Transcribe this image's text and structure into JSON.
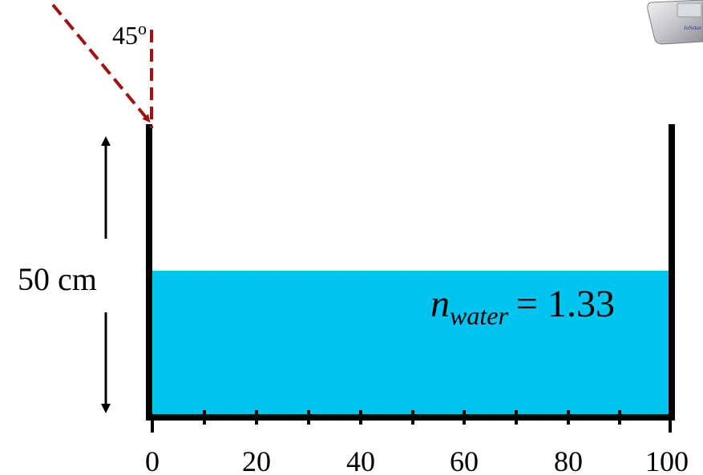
{
  "angle_label": {
    "value": "45",
    "unit": "o"
  },
  "height_label": "50 cm",
  "water_label": {
    "symbol": "n",
    "subscript": "water",
    "equals": "= 1.33"
  },
  "axis": {
    "tick_labels": [
      "0",
      "20",
      "40",
      "60",
      "80",
      "100"
    ]
  },
  "device_label": "JoSeker",
  "colors": {
    "water": "#00c4f0",
    "ray": "#a01010",
    "tank": "#000000"
  },
  "icons": [
    "clicker-device-icon"
  ]
}
